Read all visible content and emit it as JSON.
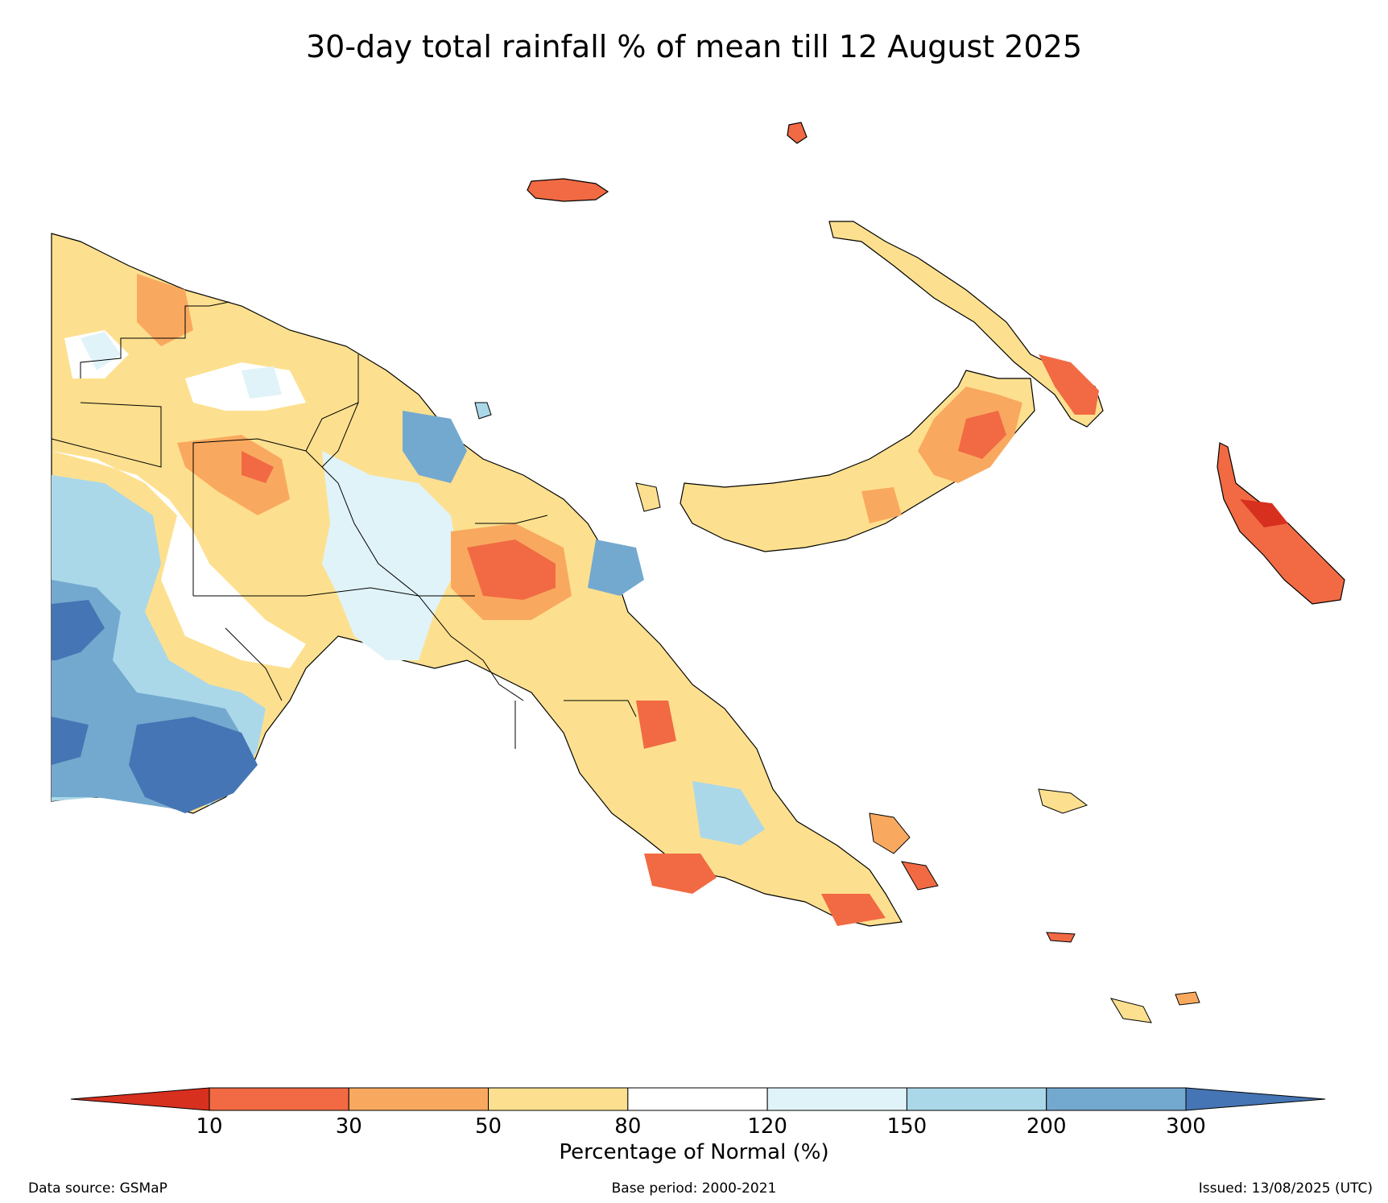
{
  "title": "30-day total rainfall % of mean till 12 August 2025",
  "legend": {
    "label": "Percentage of Normal (%)",
    "ticks": [
      "10",
      "30",
      "50",
      "80",
      "120",
      "150",
      "200",
      "300"
    ],
    "colors": [
      "#d7301f",
      "#f16a43",
      "#f9a95f",
      "#fde08f",
      "#ffffff",
      "#e0f3f8",
      "#abd8e9",
      "#74a9cf",
      "#4575b4"
    ]
  },
  "footer": {
    "source": "Data source: GSMaP",
    "base_period": "Base period: 2000-2021",
    "issued": "Issued: 13/08/2025 (UTC)"
  }
}
